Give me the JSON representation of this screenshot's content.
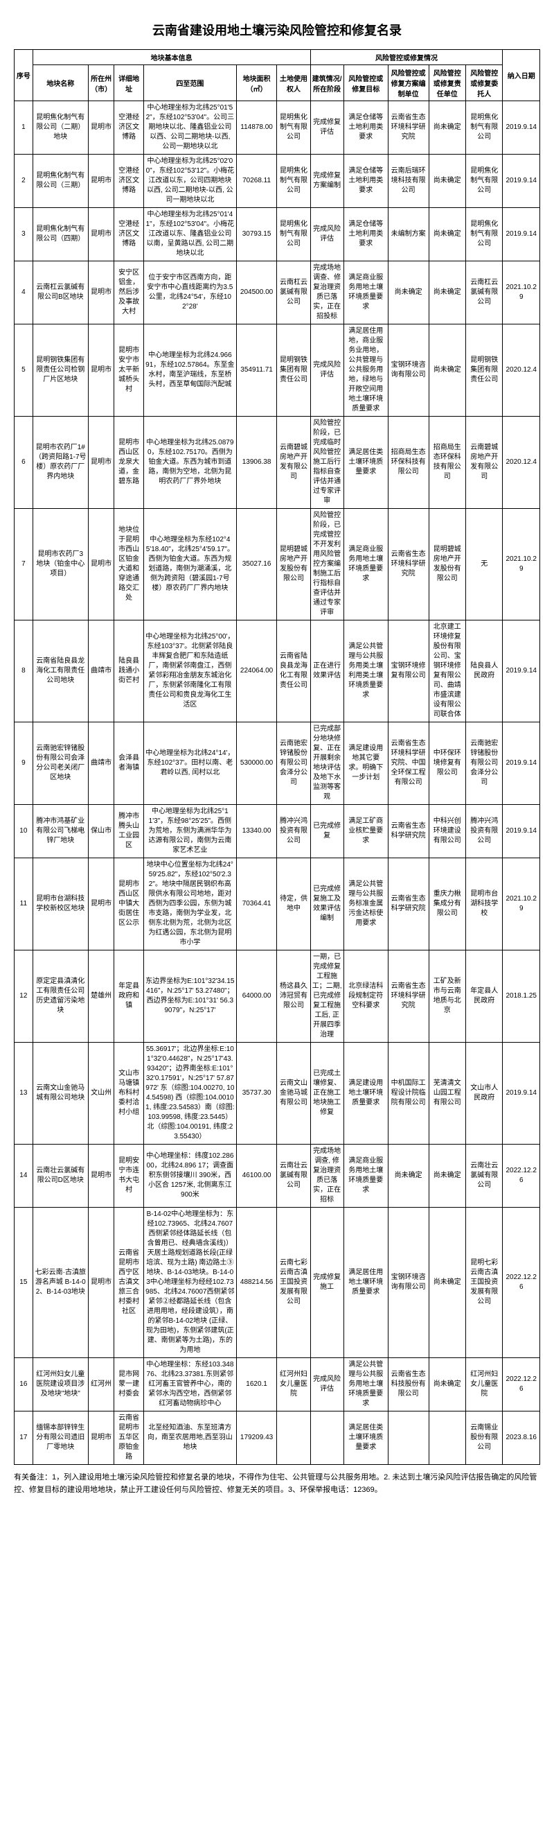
{
  "title": "云南省建设用地土壤污染风险管控和修复名录",
  "header_groups": {
    "basic": "地块基本信息",
    "control": "风险管控或修复情况"
  },
  "headers": {
    "seq": "序号",
    "name": "地块名称",
    "city": "所在州（市）",
    "addr": "详细地址",
    "bounds": "四至范围",
    "area": "地块面积（㎡）",
    "owner": "土地使用权人",
    "pollute": "建筑情况/所在阶段",
    "target": "风险管控或修复目标",
    "control": "风险管控或修复方案编制单位",
    "resp": "风险管控或修复责任单位",
    "trust": "风险管控或修复委托人",
    "date": "纳入日期"
  },
  "rows": [
    {
      "seq": "1",
      "name": "昆明焦化制气有限公司（二期）地块",
      "city": "昆明市",
      "addr": "空港经济区文博路",
      "bounds": "中心地理坐标为北纬25°01'52\"，东经102°53'04\"。公司三期地块以北、隆鑫铝业公司以西、公司二期地块-以西, 公司一期地块以北",
      "area": "114878.00",
      "owner": "昆明焦化制气有限公司",
      "pollute": "完成修复评估",
      "target": "满足仓储等土地利用类要求",
      "control": "云南省生态环境科学研究院",
      "resp": "尚未确定",
      "trust": "昆明焦化制气有限公司",
      "date": "2019.9.14"
    },
    {
      "seq": "2",
      "name": "昆明焦化制气有限公司（三期）",
      "city": "昆明市",
      "addr": "空港经济区文博路",
      "bounds": "中心地理坐标为北纬25°02'00\"，东经102°53'12\"。小梅花江改道以东，公司四期地块以西, 公司二期地块-以西, 公司一期地块以北",
      "area": "70268.11",
      "owner": "昆明焦化制气有限公司",
      "pollute": "完成修复方案编制",
      "target": "满足仓储等土地利用类要求",
      "control": "云南后瑞环境科技有限公司",
      "resp": "尚未确定",
      "trust": "昆明焦化制气有限公司",
      "date": "2019.9.14"
    },
    {
      "seq": "3",
      "name": "昆明焦化制气有限公司（四期）",
      "city": "昆明市",
      "addr": "空港经济区文博路",
      "bounds": "中心地理坐标为北纬25°01'41\"，东经102°53'04\"。小梅花江改道以东、隆鑫铝业公司以南，呈黄路以西, 公司二期地块以北",
      "area": "30793.15",
      "owner": "昆明焦化制气有限公司",
      "pollute": "完成风险评估",
      "target": "满足仓储等土地利用类要求",
      "control": "未编制方案",
      "resp": "尚未确定",
      "trust": "昆明焦化制气有限公司",
      "date": "2019.9.14"
    },
    {
      "seq": "4",
      "name": "云南杠云氯碱有限公司B区地块",
      "city": "昆明市",
      "addr": "安宁区铝金，然后涉及事故大村",
      "bounds": "位于安宁市区西南方向，距安宁市中心直线距离约为3.5公里，北纬24°54'，东经102°28'",
      "area": "204500.00",
      "owner": "云南杠云氯碱有限公司",
      "pollute": "完成场地调查、修复治理资质已落实，正在招投标",
      "target": "满足商业服务用地土壤环境质量要求",
      "control": "尚未确定",
      "resp": "尚未确定",
      "trust": "云南杠云氯碱有限公司",
      "date": "2021.10.29"
    },
    {
      "seq": "5",
      "name": "昆明钢铁集团有限责任公司检钢厂片区地块",
      "city": "昆明市",
      "addr": "昆明市安宁市太平新城桥头村",
      "bounds": "中心地理坐标为北纬24.966 91，东经102.57864。东至金水村，南至沪瑞线，东至桥头村，西至草甸国际汽配城",
      "area": "354911.71",
      "owner": "昆明钢铁集团有限责任公司",
      "pollute": "完成风险评估",
      "target": "满足居住用地，商业服务业用地，公共管理与公共服务用地，绿地与开敞空间用地土壤环境质量要求",
      "control": "宝钢环境咨询有限公司",
      "resp": "尚未确定",
      "trust": "昆明钢铁集团有限责任公司",
      "date": "2020.12.4"
    },
    {
      "seq": "6",
      "name": "昆明市农药厂1#（跨资阳路1-7号楼）原农药厂厂界内地块",
      "city": "昆明市",
      "addr": "昆明市西山区龙泉大道，金碧东路",
      "bounds": "中心地理坐标为北纬25.08790，东经102.75170。西侧为铂金大道。东西为城市到道路，南侧为空地，北侧为昆明农药厂厂界外地块",
      "area": "13906.38",
      "owner": "云南碧城房地产开发有限公司",
      "pollute": "风险管控阶段，已完成临时风险管控施工后行指标自查评估并通过专家评审",
      "target": "满足居住类土壤环境质量要求",
      "control": "招商局生态环保科技有限公司",
      "resp": "招商局生态环保科技有限公司",
      "trust": "云南碧城房地产开发有限公司",
      "date": "2020.12.4"
    },
    {
      "seq": "7",
      "name": "昆明市农药厂3地块（铂金中心项目）",
      "city": "昆明市",
      "addr": "地块位于昆明市西山区铂金大道和穿途通路交汇处",
      "bounds": "中心地理坐标为东经102°45'18.40\"，北纬25°4'59.17\"。西侧为铂金大道。东西为规划道路，南侧为潮涌溪，北侧为跨资阳（碧溪园1-7号楼）原农药厂厂界内地块",
      "area": "35027.16",
      "owner": "昆明碧城房地产开发股份有限公司",
      "pollute": "风险管控阶段，已完成管控不开发利用风险管控方案编制施工后行指标自查评估并通过专家评审",
      "target": "满足商业服务用地土壤环境质量要求",
      "control": "云南省生态环境科学研究院",
      "resp": "昆明碧城房地产开发股份有限公司",
      "trust": "无",
      "date": "2021.10.29"
    },
    {
      "seq": "8",
      "name": "云南省陆良县龙海化工有限责任公司地块",
      "city": "曲靖市",
      "addr": "陆良县践通小街芒村",
      "bounds": "中心地理坐标为北纬25°00'，东经103°37'。北侧紧邻陆良丰辉复合肥厂和东陆造纸厂，南侧紧邻南盘江，西侧紧邻彩翔冶金朋友东城治化厂，东侧紧邻南隆化工有限责任公司和贵良龙海化工生活区",
      "area": "224064.00",
      "owner": "云南省陆良县龙海化工有限责任公司",
      "pollute": "正在进行效果评估",
      "target": "满足公共管理与公共服务用类土壤利用类土壤环境质量要求",
      "control": "宝钢环境修复有限公司",
      "resp": "北京建工环境修复股份有限公司、宝钢环境修复有限公司、曲靖市盛滨建设有限公司联合体",
      "trust": "陆良县人民政府",
      "date": "2019.9.14"
    },
    {
      "seq": "9",
      "name": "云南驰宏锌锗股份有限公司会泽分公司老关闭厂区地块",
      "city": "曲靖市",
      "addr": "会泽县者海镇",
      "bounds": "中心地理坐标为北纬24°14'，东经102°37'。田村以南、老君岭以西, 闰村以北",
      "area": "530000.00",
      "owner": "云南驰宏锌锗股份有限公司会泽分公司",
      "pollute": "已完成部分地块修复、正在开展剩余地块评估及地下水监测等客观",
      "target": "满足建设用地其它要求。明确下一步计划",
      "control": "云南省生态环境科学研究院、中国全环保工程有限公司",
      "resp": "中环保环境修复有限公司",
      "trust": "云南驰宏锌锗股份有限公司会泽分公司",
      "date": "2019.9.14"
    },
    {
      "seq": "10",
      "name": "腾冲市鸿基矿业有限公司飞梯电锌厂地块",
      "city": "保山市",
      "addr": "腾冲市腾头山工业园区",
      "bounds": "中心地理坐标为北纬25°11'3\"，东经98°25'25\"。西侧为荒地，东侧为满洲华华为达源有限公司，南侧为云南家艺术艺业",
      "area": "13340.00",
      "owner": "腾冲兴鸿投资有限公司",
      "pollute": "已完成修复",
      "target": "满足工矿商业核贮量要求",
      "control": "云南省生态科学研究院",
      "resp": "中科兴创环境建设有限公司",
      "trust": "腾冲兴鸿投资有限公司",
      "date": "2019.9.14"
    },
    {
      "seq": "11",
      "name": "昆明市台湖科技学校新校区地块",
      "city": "昆明市",
      "addr": "昆明市西山区中镇大街居住区公示",
      "bounds": "地块中心位置坐标为北纬24°59'25.82\"，东经102°50'2.32\"。地块中隔居民钢织布高限供水有限公司地地，距对西侧为四季公园，东侧为城市支路，南侧为学业发，北侧东北侧为荒，北侧为北区为红遇公园，东北侧为昆明市小学",
      "area": "70364.41",
      "owner": "待定，供地中",
      "pollute": "已完成修复施工及效果评估编制",
      "target": "满足公共管理与公共服务标准金属污金达标使用要求",
      "control": "云南省生态科学研究院",
      "resp": "重庆力楸集成分有限公司",
      "trust": "昆明市台湖科技学校",
      "date": "2021.10.29"
    },
    {
      "seq": "12",
      "name": "原定定县滇清化工有限责任公司历史遗留污染地块",
      "city": "楚雄州",
      "addr": "年定县政府和镇",
      "bounds": "东边界坐标为E:101°32'34.15416\"，N:25°17' 53.27480\"；西边界坐标为E:101°31' 56.39079\"，N:25°17'",
      "area": "64000.00",
      "owner": "杨这县久沛冠贸有限公司",
      "pollute": "一期，已完成修复工程施工；二期, 已完成修复工程施工后, 正开展四季治理",
      "target": "北京绿洁科段规制定符空科要求",
      "control": "云南省生态环境科学研究院",
      "resp": "工矿及新市与云南地质与北京",
      "trust": "年定县人民政府",
      "date": "2018.1.25"
    },
    {
      "seq": "13",
      "name": "云南文山金驰马城有限公司地块",
      "city": "文山州",
      "addr": "文山市马塘镇布科村委村洽村小组",
      "bounds": "55.36917'；北边界坐标:E:101°32'0.44628\"，N:25°17'43.93420\"；边界南坐标:E:101°32'0.17591'，N:25°17' 57.87972'  东（综图:104.00270, 104.54598) 西（综图:104.00101, 纬度:23.54583）南（综图:103.99598, 纬度:23.5445） 北（综图:104.00191, 纬度:23.55430）",
      "area": "35737.30",
      "owner": "云南文山金驰马城有限公司",
      "pollute": "已完成土壤修复、正在施工地块施工修复",
      "target": "满足建设用地土壤环境质量要求",
      "control": "中机国际工程设计院临院有限公司",
      "resp": "芜清清文山园工程有限公司",
      "trust": "文山市人民政府",
      "date": "2019.9.14"
    },
    {
      "seq": "14",
      "name": "云南壮云氯碱有限公司D区地块",
      "city": "昆明市",
      "addr": "昆明安宁市连书大屯村",
      "bounds": "中心地理坐标：纬度102.28600，北纬24.896 17；调查面积东侧邻接壤川 390米，西小区合 1257米, 北侧离东江 900米",
      "area": "46100.00",
      "owner": "云南壮云氯碱有限公司",
      "pollute": "完成场地调查, 修复治理资质已落实，正在招标",
      "target": "满足商业服务用地土壤环境质量要求",
      "control": "尚未确定",
      "resp": "尚未确定",
      "trust": "云南壮云氯碱有限公司",
      "date": "2022.12.26"
    },
    {
      "seq": "15",
      "name": "七彩云南·古滇旅游名声城 B-14-02、B-14-03地块",
      "city": "昆明市",
      "addr": "云南省昆明市西宁区古滇文旅三合村委村社区",
      "bounds": "B-14-02中心地理坐标为：东经102.73965、北纬24.7607 西侧紧邻经体路延长线（包含曾用已、经典墙含溪线)）天居土路规划道路长段(正绿培滨、现为土路) 南边路土③地块、B-14-03地块。B-14-03中心地理坐标为经经102.73985、北纬24.76007西侧紧邻紧邻②经都路延长线（包含进用用地，经段建设筑），南的紧邻B-14-02地块 (正绿、现为田地)，东侧紧邻建筑(正建、南侧紧等为土路)，东的为用地",
      "area": "488214.56",
      "owner": "云南七彩云南古滇王国投资发展有限公司",
      "pollute": "完成修复施工",
      "target": "满足居住用地土壤环境质量要求",
      "control": "宝钢环境咨询有限公司",
      "resp": "尚未确定",
      "trust": "昆明七彩云南古滇王国投资发展有限公司",
      "date": "2022.12.26"
    },
    {
      "seq": "16",
      "name": "红河州妇女儿童医院建设项目涉及地块\"地块\"",
      "city": "红河州",
      "addr": "昆市网蒙一建村委会",
      "bounds": "中心地理坐标：东经103.34876、北纬23.37381.东则紧邻红河畜王官管养中心，南的紧邻水沟西空地，西侧紧邻红河畜动物病珍中心",
      "area": "1620.1",
      "owner": "红河州妇女儿童医院",
      "pollute": "完成风险评估",
      "target": "满足公共管理与公共服务用地土壤环境质量要求",
      "control": "云南省生态科技股份有限公司",
      "resp": "尚未确定",
      "trust": "红河州妇女儿童医院",
      "date": "2022.12.26"
    },
    {
      "seq": "17",
      "name": "缅锡本部锌锌生分有限公司遗旧厂零地块",
      "city": "昆明市",
      "addr": "云南省昆明市五华区原铂金路",
      "bounds": "北至经知酒油、东至班清方向，南至农居用地,西至羽山地块",
      "area": "179209.43",
      "owner": "",
      "pollute": "",
      "target": "满足居住类土壤环境质量要求",
      "control": "",
      "resp": "",
      "trust": "云南锡业股份有限公司",
      "date": "2023.8.16"
    }
  ],
  "notes": "有关备注：1，列入建设用地土壤污染风险管控和修复名录的地块，不得作为住宅、公共管理与公共服务用地。2. 未达到土壤污染风险评估报告确定的风险管控、修复目标的建设用地地块，禁止开工建设任何与风险管控、修复无关的项目。3、环保举报电话：12369。"
}
